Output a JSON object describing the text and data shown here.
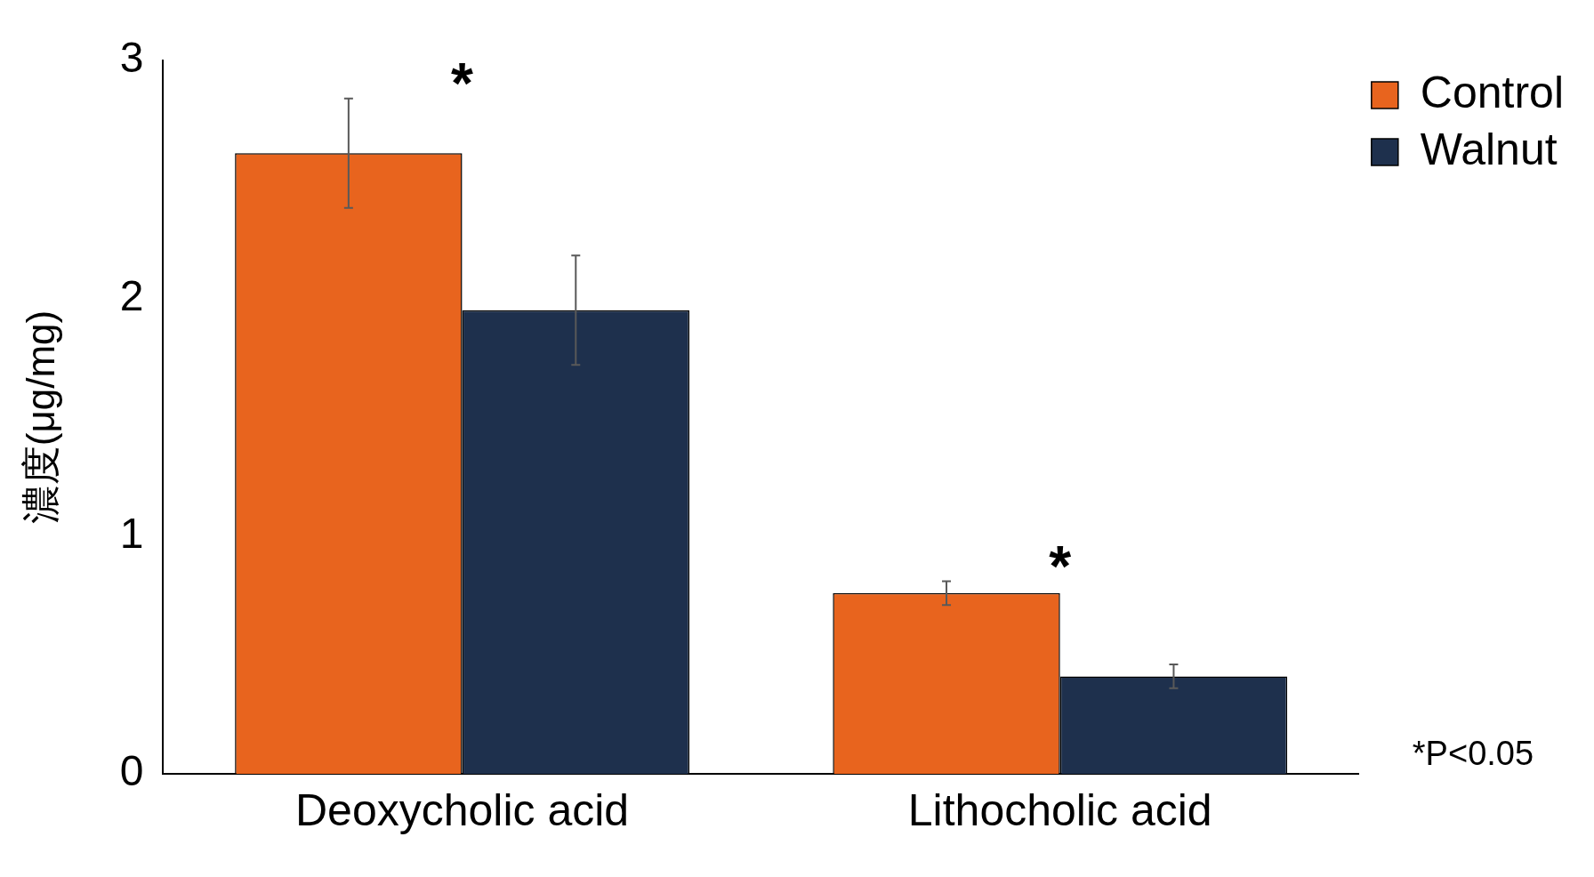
{
  "chart_data": {
    "type": "bar",
    "ylabel": "濃度(μg/mg)",
    "categories": [
      "Deoxycholic acid",
      "Lithocholic acid"
    ],
    "series": [
      {
        "name": "Control",
        "color": "#e8641e",
        "values": [
          2.61,
          0.76
        ],
        "errors": [
          [
            2.38,
            2.84
          ],
          [
            0.71,
            0.81
          ]
        ]
      },
      {
        "name": "Walnut",
        "color": "#1e304d",
        "values": [
          1.95,
          0.41
        ],
        "errors": [
          [
            1.72,
            2.18
          ],
          [
            0.36,
            0.46
          ]
        ]
      }
    ],
    "ylim": [
      0,
      3
    ],
    "yticks": [
      0,
      1,
      2,
      3
    ],
    "grid": false,
    "legend": "top right",
    "annotations": [
      "*",
      "*",
      "*P<0.05"
    ]
  }
}
